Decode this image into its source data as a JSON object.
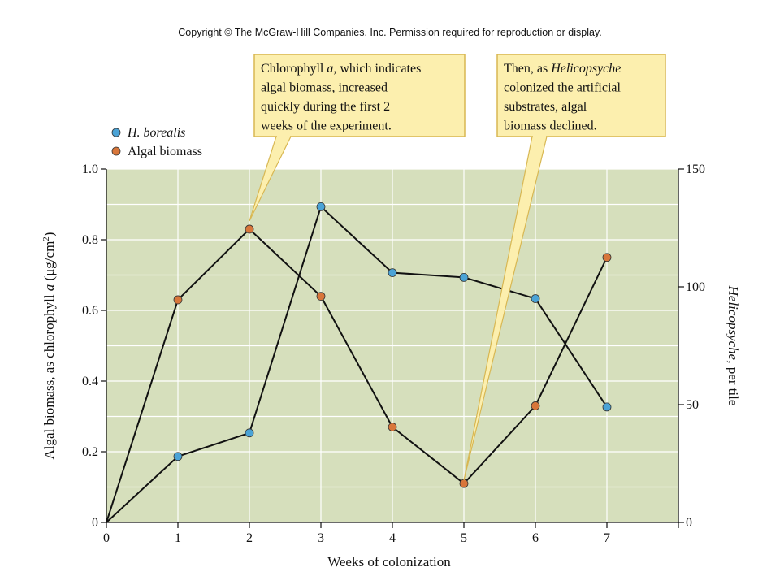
{
  "copyright": "Copyright © The McGraw-Hill Companies, Inc. Permission required for reproduction or display.",
  "colors": {
    "plot_background": "#d6dfbc",
    "grid": "#ffffff",
    "line": "#111111",
    "h_borealis_marker": "#4ba3d6",
    "algal_marker": "#d8763a",
    "callout_fill": "#fcefae",
    "callout_stroke": "#d8b752"
  },
  "callouts": {
    "left": {
      "lines": [
        [
          {
            "t": "Chlorophyll "
          },
          {
            "t": "a",
            "i": true
          },
          {
            "t": ", which indicates"
          }
        ],
        [
          {
            "t": "algal biomass, increased"
          }
        ],
        [
          {
            "t": "quickly during the first 2"
          }
        ],
        [
          {
            "t": "weeks of the experiment."
          }
        ]
      ]
    },
    "right": {
      "lines": [
        [
          {
            "t": "Then, as "
          },
          {
            "t": "Helicopsyche",
            "i": true
          }
        ],
        [
          {
            "t": "colonized the artificial"
          }
        ],
        [
          {
            "t": "substrates, algal"
          }
        ],
        [
          {
            "t": "biomass declined."
          }
        ]
      ]
    }
  },
  "chart_data": {
    "type": "line",
    "title": "",
    "xlabel": "Weeks of colonization",
    "ylabel_left": "Algal biomass, as chlorophyll a (μg/cm²)",
    "ylabel_right": "Helicopsyche, per tile",
    "x_ticks": [
      "0",
      "1",
      "2",
      "3",
      "4",
      "5",
      "6",
      "7"
    ],
    "y_left_ticks": [
      "0",
      "0.2",
      "0.4",
      "0.6",
      "0.8",
      "1.0"
    ],
    "y_right_ticks": [
      "0",
      "50",
      "100",
      "150"
    ],
    "xlim": [
      0,
      8
    ],
    "ylim_left": [
      0,
      1.0
    ],
    "ylim_right": [
      0,
      150
    ],
    "grid": true,
    "legend_position": "top-left",
    "series": [
      {
        "name": "H. borealis",
        "name_italic": true,
        "axis": "right",
        "x": [
          0,
          1,
          2,
          3,
          4,
          5,
          6,
          7
        ],
        "y": [
          0,
          28,
          38,
          134,
          106,
          104,
          95,
          49
        ],
        "marker_color": "#4ba3d6"
      },
      {
        "name": "Algal biomass",
        "name_italic": false,
        "axis": "left",
        "x": [
          0,
          1,
          2,
          3,
          4,
          5,
          6,
          7
        ],
        "y": [
          0,
          0.63,
          0.83,
          0.64,
          0.27,
          0.11,
          0.33,
          0.75
        ],
        "marker_color": "#d8763a"
      }
    ]
  }
}
